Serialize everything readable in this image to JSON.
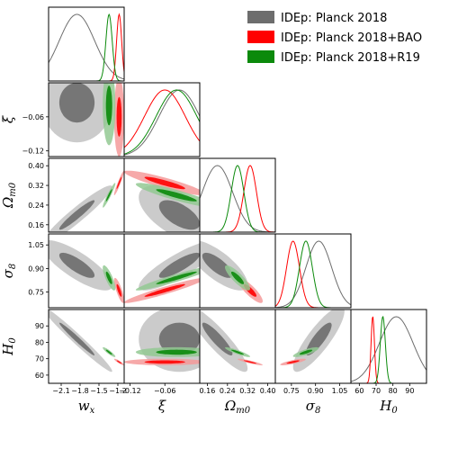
{
  "chart_data": {
    "type": "triangle",
    "description_free": true,
    "legend_position": "top-right",
    "series": [
      {
        "name": "IDEp: Planck 2018",
        "color": "#6d6d6d",
        "light": "#c2c2c2"
      },
      {
        "name": "IDEp: Planck 2018+BAO",
        "color": "#ff0000",
        "light": "#f59a9a"
      },
      {
        "name": "IDEp: Planck 2018+R19",
        "color": "#0b8a0b",
        "light": "#93c993"
      }
    ],
    "params": [
      {
        "id": "wx",
        "label": "w_x",
        "sub": "x",
        "base": "w",
        "range": [
          -2.3,
          -1.1
        ],
        "ticks": [
          -2.1,
          -1.8,
          -1.5,
          -1.2
        ],
        "ticklabels": [
          "−2.1",
          "−1.8",
          "−1.5",
          "−1.2"
        ]
      },
      {
        "id": "xi",
        "label": "ξ",
        "sub": "",
        "base": "ξ",
        "range": [
          -0.13,
          0.0
        ],
        "ticks": [
          -0.12,
          -0.06
        ],
        "ticklabels": [
          "−0.12",
          "−0.06"
        ]
      },
      {
        "id": "om",
        "label": "Ω_m0",
        "sub": "m0",
        "base": "Ω",
        "range": [
          0.13,
          0.43
        ],
        "ticks": [
          0.16,
          0.24,
          0.32,
          0.4
        ],
        "ticklabels": [
          "0.16",
          "0.24",
          "0.32",
          "0.40"
        ]
      },
      {
        "id": "s8",
        "label": "σ_8",
        "sub": "8",
        "base": "σ",
        "range": [
          0.65,
          1.12
        ],
        "ticks": [
          0.75,
          0.9,
          1.05
        ],
        "ticklabels": [
          "0.75",
          "0.90",
          "1.05"
        ],
        "ticks_x": [
          0.75,
          0.9,
          1.05
        ],
        "ticklabels_x": [
          "0.75",
          "0.90",
          "1.05"
        ]
      },
      {
        "id": "h0",
        "label": "H_0",
        "sub": "0",
        "base": "H",
        "range": [
          55,
          100
        ],
        "ticks": [
          60,
          70,
          80,
          90
        ],
        "ticklabels": [
          "60",
          "70",
          "80",
          "90"
        ]
      }
    ],
    "y_ticks_left": {
      "xi": {
        "ticks": [
          -0.06,
          -0.12
        ],
        "labels": [
          "−0.06",
          "−0.12"
        ]
      },
      "om": {
        "ticks": [
          0.4,
          0.32,
          0.24,
          0.16
        ],
        "labels": [
          "0.40",
          "0.32",
          "0.24",
          "0.16"
        ]
      },
      "s8": {
        "ticks": [
          1.05,
          0.9,
          0.75
        ],
        "labels": [
          "1.05",
          "0.90",
          "0.75"
        ]
      },
      "h0": {
        "ticks": [
          90,
          80,
          70,
          60
        ],
        "labels": [
          "90",
          "80",
          "70",
          "60"
        ]
      }
    },
    "x_tick_labels_bottom": {
      "wx": [
        "−2.1",
        "−1.8",
        "−1.5",
        "−1.2"
      ],
      "xi": [
        "−0.12",
        "−0.06"
      ],
      "om": [
        "0.16",
        "0.24",
        "0.32",
        "0.40"
      ],
      "s8": [
        "0.75",
        "0.90",
        "1.05"
      ],
      "h0": [
        "60",
        "70",
        "80",
        "90"
      ]
    },
    "stats": {
      "wx": [
        {
          "mean": -1.85,
          "sd": 0.28
        },
        {
          "mean": -1.18,
          "sd": 0.04
        },
        {
          "mean": -1.34,
          "sd": 0.05
        }
      ],
      "xi": [
        {
          "mean": -0.035,
          "sd": 0.035
        },
        {
          "mean": -0.06,
          "sd": 0.035
        },
        {
          "mean": -0.04,
          "sd": 0.035
        }
      ],
      "om": [
        {
          "mean": 0.2,
          "sd": 0.06
        },
        {
          "mean": 0.33,
          "sd": 0.025
        },
        {
          "mean": 0.28,
          "sd": 0.025
        }
      ],
      "s8": [
        {
          "mean": 0.92,
          "sd": 0.08
        },
        {
          "mean": 0.76,
          "sd": 0.04
        },
        {
          "mean": 0.84,
          "sd": 0.04
        }
      ],
      "h0": [
        {
          "mean": 82,
          "sd": 10
        },
        {
          "mean": 68,
          "sd": 1.0
        },
        {
          "mean": 74,
          "sd": 1.5
        }
      ]
    },
    "correlations": {
      "wx|xi": [
        0.0,
        0.0,
        0.0
      ],
      "wx|om": [
        0.95,
        0.95,
        0.95
      ],
      "xi|om": [
        -0.6,
        -0.9,
        -0.9
      ],
      "wx|s8": [
        -0.8,
        -0.8,
        -0.8
      ],
      "xi|s8": [
        0.85,
        0.95,
        0.95
      ],
      "om|s8": [
        -0.75,
        -0.85,
        -0.85
      ],
      "wx|h0": [
        -0.98,
        -0.9,
        -0.9
      ],
      "xi|h0": [
        0.0,
        0.0,
        0.0
      ],
      "om|h0": [
        -0.9,
        -0.9,
        -0.9
      ],
      "s8|h0": [
        0.85,
        0.8,
        0.8
      ]
    }
  }
}
